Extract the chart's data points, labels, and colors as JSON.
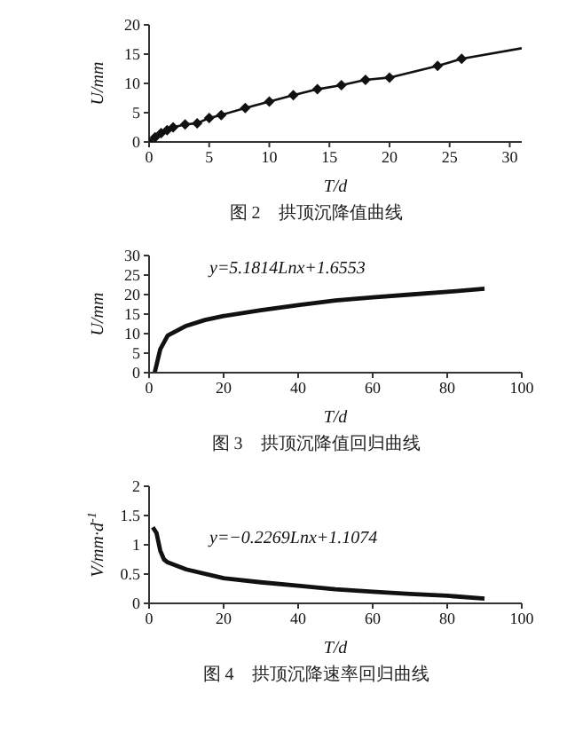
{
  "chart_data": [
    {
      "type": "line",
      "title": "图 2　拱顶沉降值曲线",
      "xlabel": "T/d",
      "ylabel": "U/mm",
      "xlim": [
        0,
        31
      ],
      "xticks": [
        0,
        5,
        10,
        15,
        20,
        25,
        30
      ],
      "ylim": [
        0,
        20
      ],
      "yticks": [
        0,
        5,
        10,
        15,
        20
      ],
      "series": [
        {
          "color": "#111111",
          "marker": "diamond",
          "x": [
            0,
            0.5,
            1,
            1.5,
            2,
            3,
            4,
            5,
            6,
            8,
            10,
            12,
            14,
            16,
            18,
            20,
            24,
            26
          ],
          "values": [
            0,
            0.8,
            1.5,
            2,
            2.5,
            3,
            3.2,
            4.1,
            4.6,
            5.8,
            6.9,
            8,
            9,
            9.7,
            10.6,
            11,
            13,
            14.2
          ]
        },
        {
          "color": "#111111",
          "marker": "none",
          "x": [
            26,
            31
          ],
          "values": [
            14.2,
            16
          ]
        }
      ]
    },
    {
      "type": "line",
      "title": "图 3　拱顶沉降值回归曲线",
      "xlabel": "T/d",
      "ylabel": "U/mm",
      "xlim": [
        0,
        100
      ],
      "xticks": [
        0,
        20,
        40,
        60,
        80,
        100
      ],
      "ylim": [
        0,
        30
      ],
      "yticks": [
        0,
        5,
        10,
        15,
        20,
        25,
        30
      ],
      "annotations": [
        "y=5.1814Lnx+1.6553"
      ],
      "series": [
        {
          "color": "#111111",
          "marker": "none",
          "x": [
            1.5,
            3,
            5,
            10,
            15,
            20,
            30,
            40,
            50,
            60,
            70,
            80,
            90
          ],
          "values": [
            0,
            6,
            9.5,
            12,
            13.5,
            14.5,
            16,
            17.3,
            18.5,
            19.3,
            20,
            20.7,
            21.5
          ]
        }
      ]
    },
    {
      "type": "line",
      "title": "图 4　拱顶沉降速率回归曲线",
      "xlabel": "T/d",
      "ylabel": "V/mm·d$^{-1}$",
      "xlim": [
        0,
        100
      ],
      "xticks": [
        0,
        20,
        40,
        60,
        80,
        100
      ],
      "ylim": [
        0,
        2
      ],
      "yticks": [
        0,
        0.5,
        1,
        1.5,
        2
      ],
      "annotations": [
        "y=−0.2269Lnx+1.1074"
      ],
      "series": [
        {
          "color": "#111111",
          "marker": "none",
          "x": [
            1,
            2,
            3,
            4,
            5,
            10,
            20,
            30,
            40,
            50,
            60,
            70,
            80,
            90
          ],
          "values": [
            1.3,
            1.2,
            0.9,
            0.75,
            0.7,
            0.58,
            0.43,
            0.36,
            0.3,
            0.24,
            0.2,
            0.16,
            0.13,
            0.08
          ]
        }
      ]
    }
  ]
}
